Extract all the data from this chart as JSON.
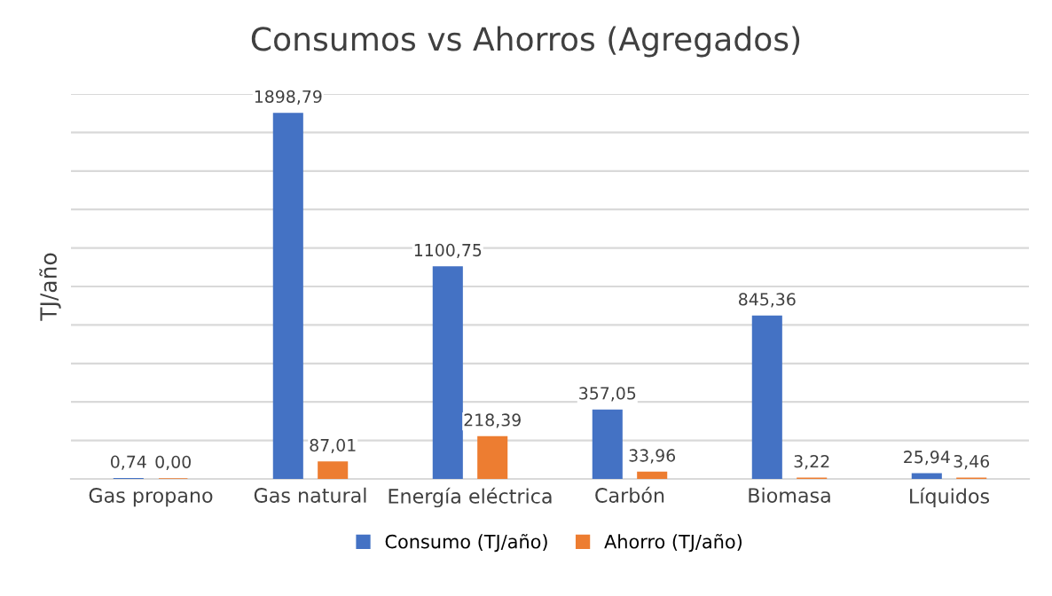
{
  "chart_data": {
    "type": "bar",
    "title": "Consumos vs Ahorros (Agregados)",
    "ylabel": "TJ/año",
    "categories": [
      "Gas propano",
      "Gas natural",
      "Energía eléctrica",
      "Carbón",
      "Biomasa",
      "Líquidos"
    ],
    "series": [
      {
        "name": "Consumo (TJ/año)",
        "color": "#4472c4",
        "values": [
          0.74,
          1898.79,
          1100.75,
          357.05,
          845.36,
          25.94
        ],
        "value_labels": [
          "0,74",
          "1898,79",
          "1100,75",
          "357,05",
          "845,36",
          "25,94"
        ]
      },
      {
        "name": "Ahorro (TJ/año)",
        "color": "#ed7d31",
        "values": [
          0.0,
          87.01,
          218.39,
          33.96,
          3.22,
          3.46
        ],
        "value_labels": [
          "0,00",
          "87,01",
          "218,39",
          "33,96",
          "3,22",
          "3,46"
        ]
      }
    ],
    "ylim": [
      0,
      2000
    ],
    "yticks": [
      {
        "value": 0,
        "label": null
      },
      {
        "value": 200,
        "label": null
      },
      {
        "value": 400,
        "label": null
      },
      {
        "value": 600,
        "label": null
      },
      {
        "value": 800,
        "label": null
      },
      {
        "value": 1000,
        "label": null
      },
      {
        "value": 1200,
        "label": null
      },
      {
        "value": 1400,
        "label": null
      },
      {
        "value": 1600,
        "label": null
      },
      {
        "value": 1800,
        "label": null
      },
      {
        "value": 2000,
        "label": null
      }
    ],
    "tick_labels": "x",
    "grid": "y",
    "legend": "bottom"
  }
}
